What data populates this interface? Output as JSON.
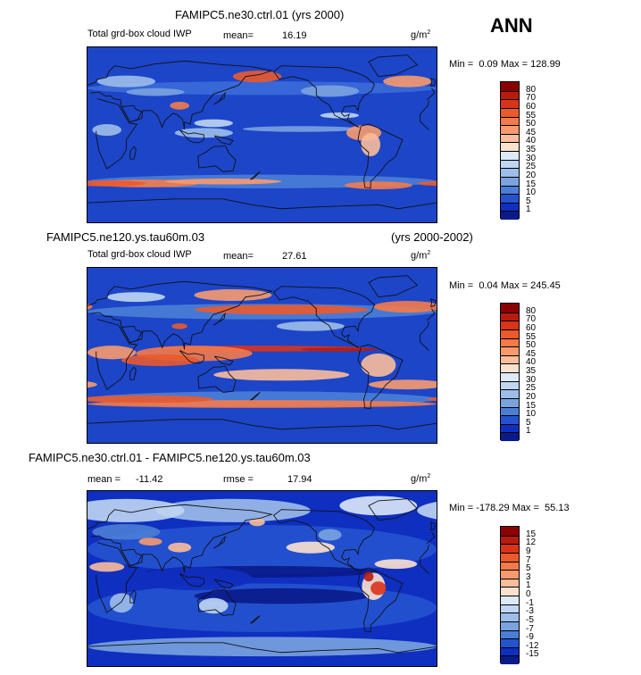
{
  "season": "ANN",
  "chart_data": [
    {
      "type": "heatmap",
      "title": "FAMIPC5.ne30.ctrl.01 (yrs 2000)",
      "title_right": "",
      "subtitle": "Total grd-box cloud IWP",
      "mean_label": "mean=",
      "mean_value": "16.19",
      "units": "g/m",
      "units_exp": "2",
      "min_label": "Min =",
      "min_value": "0.09",
      "max_label": "Max =",
      "max_value": "128.99",
      "colorbar": {
        "levels": [
          "80",
          "70",
          "60",
          "55",
          "50",
          "45",
          "40",
          "35",
          "30",
          "25",
          "20",
          "15",
          "10",
          "5",
          "1"
        ],
        "colors": [
          "#8b0000",
          "#b81b0e",
          "#d9331b",
          "#ea5a2d",
          "#f47a4b",
          "#f89a6e",
          "#fbbd9b",
          "#fde1cf",
          "#dde9f8",
          "#c0d6f2",
          "#9ebee9",
          "#7aa3df",
          "#4b7ed6",
          "#2553cf",
          "#0f2fc0",
          "#0a1a8a"
        ]
      }
    },
    {
      "type": "heatmap",
      "title": "FAMIPC5.ne120.ys.tau60m.03",
      "title_right": "(yrs 2000-2002)",
      "subtitle": "Total grd-box cloud IWP",
      "mean_label": "mean=",
      "mean_value": "27.61",
      "units": "g/m",
      "units_exp": "2",
      "min_label": "Min =",
      "min_value": "0.04",
      "max_label": "Max =",
      "max_value": "245.45",
      "colorbar": {
        "levels": [
          "80",
          "70",
          "60",
          "55",
          "50",
          "45",
          "40",
          "35",
          "30",
          "25",
          "20",
          "15",
          "10",
          "5",
          "1"
        ],
        "colors": [
          "#8b0000",
          "#b81b0e",
          "#d9331b",
          "#ea5a2d",
          "#f47a4b",
          "#f89a6e",
          "#fbbd9b",
          "#fde1cf",
          "#dde9f8",
          "#c0d6f2",
          "#9ebee9",
          "#7aa3df",
          "#4b7ed6",
          "#2553cf",
          "#0f2fc0",
          "#0a1a8a"
        ]
      }
    },
    {
      "type": "heatmap",
      "title": "FAMIPC5.ne30.ctrl.01 - FAMIPC5.ne120.ys.tau60m.03",
      "title_right": "",
      "subtitle": "",
      "mean_label": "mean =",
      "mean_value": "-11.42",
      "rmse_label": "rmse =",
      "rmse_value": "17.94",
      "units": "g/m",
      "units_exp": "2",
      "min_label": "Min =",
      "min_value": "-178.29",
      "max_label": "Max =",
      "max_value": "55.13",
      "colorbar": {
        "levels": [
          "15",
          "12",
          "9",
          "7",
          "5",
          "3",
          "1",
          "0",
          "-1",
          "-3",
          "-5",
          "-7",
          "-9",
          "-12",
          "-15"
        ],
        "colors": [
          "#8b0000",
          "#b81b0e",
          "#d9331b",
          "#ea5a2d",
          "#f47a4b",
          "#f89a6e",
          "#fbbd9b",
          "#fde1cf",
          "#dde9f8",
          "#c0d6f2",
          "#9ebee9",
          "#7aa3df",
          "#4b7ed6",
          "#2553cf",
          "#0f2fc0",
          "#0a1a8a"
        ]
      }
    }
  ]
}
